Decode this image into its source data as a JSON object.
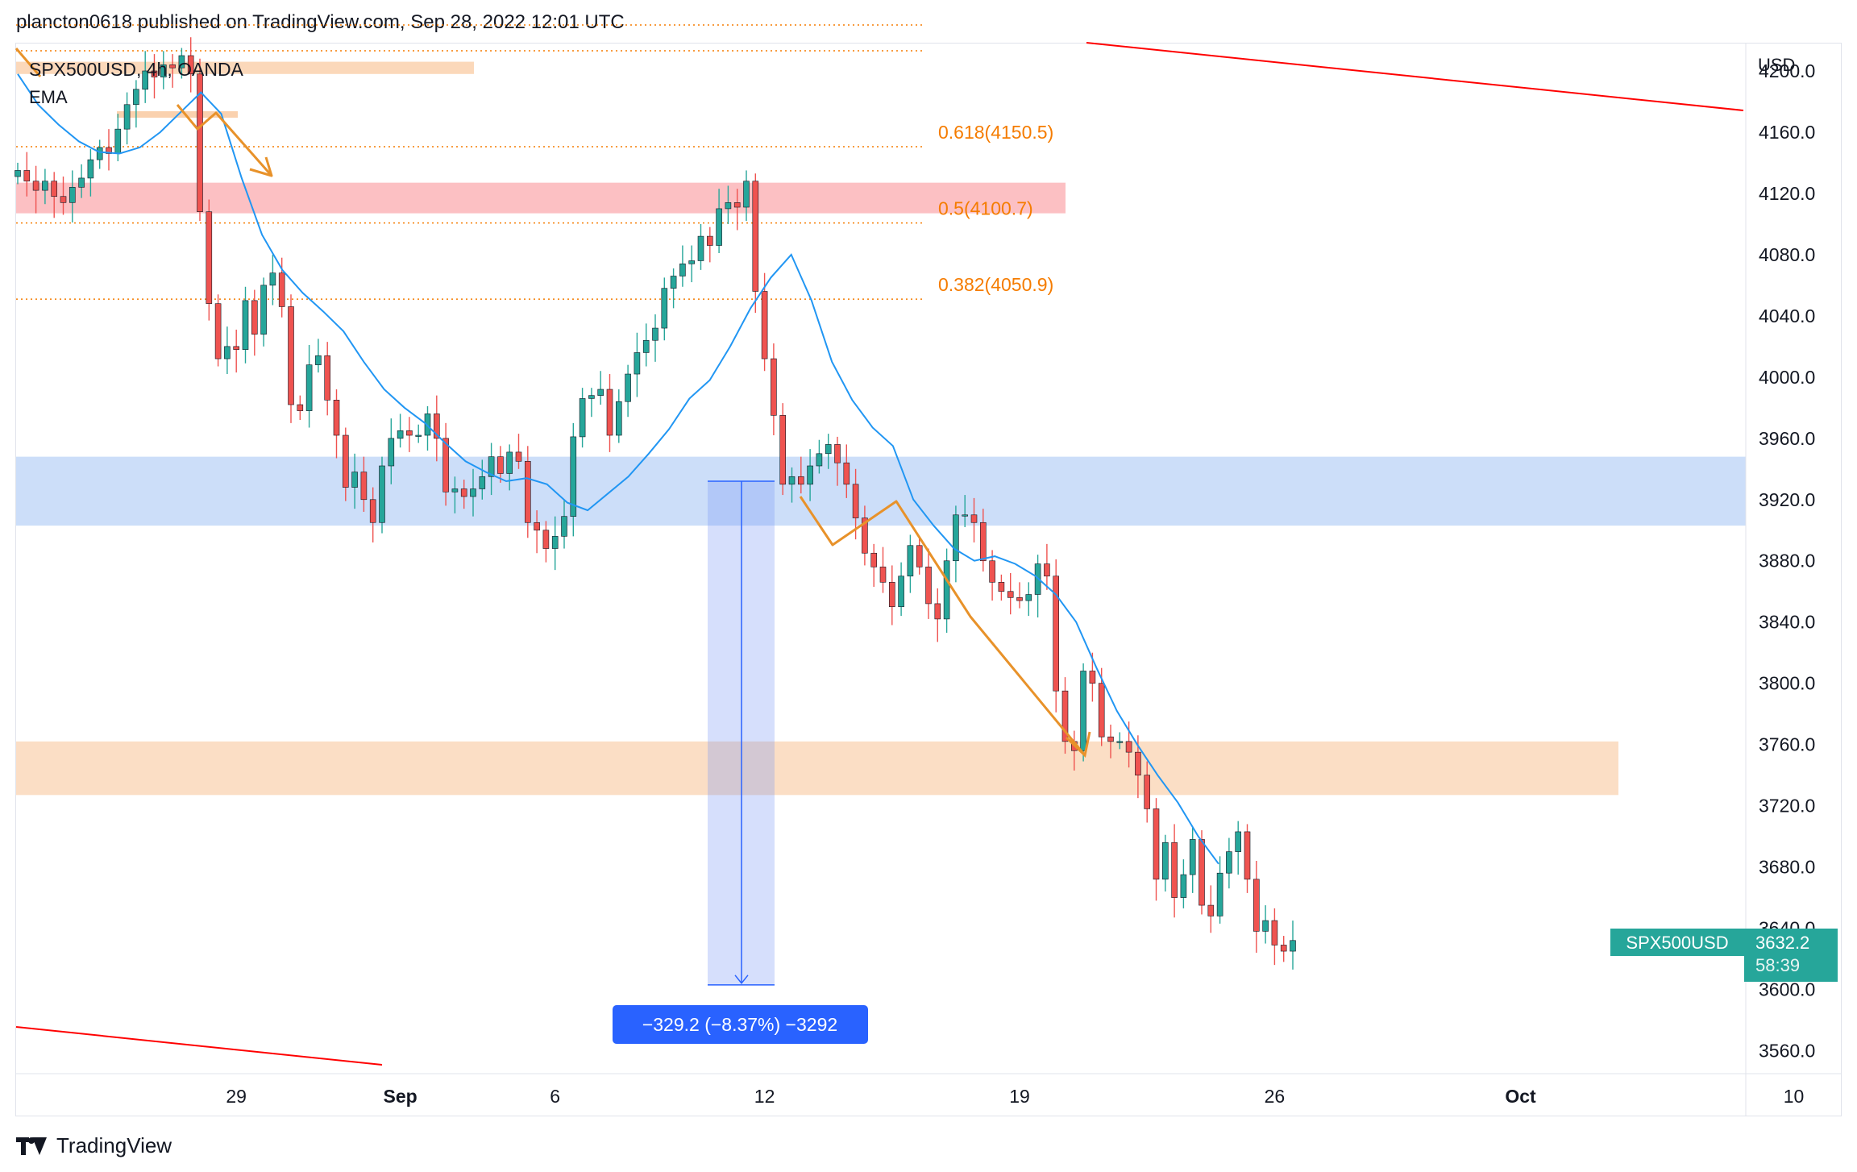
{
  "header": {
    "text": "plancton0618 published on TradingView.com, Sep 28, 2022 12:01 UTC"
  },
  "legend": {
    "symbol": "SPX500USD, 4h, OANDA",
    "indicator": "EMA"
  },
  "axis": {
    "currency": "USD"
  },
  "price_tag": {
    "symbol": "SPX500USD",
    "price": "3632.2",
    "countdown": "58:39"
  },
  "measure": {
    "label": "−329.2 (−8.37%) −3292"
  },
  "fib": [
    {
      "label": "0.618(4150.5)",
      "value": 4150.5
    },
    {
      "label": "0.5(4100.7)",
      "value": 4100.7
    },
    {
      "label": "0.382(4050.9)",
      "value": 4050.9
    }
  ],
  "footer": {
    "brand": "TradingView"
  },
  "colors": {
    "up": "#26a69a",
    "down": "#ef5350",
    "ema": "#2196f3",
    "fib": "#f57c00",
    "trend": "#ff0000",
    "arrow": "#e8922a",
    "measure": "#2962ff",
    "tag": "#26a69a"
  },
  "chart_data": {
    "type": "candlestick",
    "title": "SPX500USD, 4h, OANDA",
    "ylabel": "USD",
    "ylim": [
      3545,
      4220
    ],
    "y_ticks": [
      3560.0,
      3600.0,
      3640.0,
      3680.0,
      3720.0,
      3760.0,
      3800.0,
      3840.0,
      3880.0,
      3920.0,
      3960.0,
      4000.0,
      4040.0,
      4080.0,
      4120.0,
      4160.0,
      4200.0
    ],
    "y_tick_labels": [
      "3560.0",
      "3600.0",
      "3640.0",
      "3680.0",
      "3720.0",
      "3760.0",
      "3800.0",
      "3840.0",
      "3880.0",
      "3920.0",
      "3960.0",
      "4000.0",
      "4040.0",
      "4080.0",
      "4120.0",
      "4160.0",
      "4200.0"
    ],
    "x_ticks": [
      {
        "label": "29",
        "bar": 24,
        "bold": false
      },
      {
        "label": "Sep",
        "bar": 42,
        "bold": true
      },
      {
        "label": "6",
        "bar": 59,
        "bold": false
      },
      {
        "label": "12",
        "bar": 82,
        "bold": false
      },
      {
        "label": "19",
        "bar": 110,
        "bold": false
      },
      {
        "label": "26",
        "bar": 138,
        "bold": false
      },
      {
        "label": "Oct",
        "bar": 165,
        "bold": true
      },
      {
        "label": "10",
        "bar": 195,
        "bold": false
      }
    ],
    "closes": [
      4135,
      4128,
      4122,
      4128,
      4118,
      4114,
      4124,
      4130,
      4142,
      4150,
      4146,
      4162,
      4178,
      4188,
      4200,
      4196,
      4204,
      4202,
      4210,
      4198,
      4108,
      4048,
      4012,
      4020,
      4018,
      4050,
      4028,
      4060,
      4068,
      4046,
      3982,
      3978,
      4008,
      4014,
      3985,
      3962,
      3928,
      3938,
      3920,
      3905,
      3942,
      3960,
      3965,
      3962,
      3962,
      3976,
      3960,
      3925,
      3927,
      3922,
      3927,
      3935,
      3948,
      3937,
      3951,
      3945,
      3905,
      3900,
      3888,
      3896,
      3909,
      3961,
      3986,
      3988,
      3992,
      3962,
      3984,
      4002,
      4016,
      4024,
      4032,
      4058,
      4066,
      4074,
      4076,
      4092,
      4086,
      4110,
      4114,
      4111,
      4128,
      4056,
      4012,
      3975,
      3930,
      3935,
      3930,
      3942,
      3950,
      3956,
      3944,
      3930,
      3908,
      3885,
      3876,
      3866,
      3850,
      3870,
      3890,
      3876,
      3852,
      3842,
      3880,
      3910,
      3910,
      3905,
      3880,
      3866,
      3860,
      3856,
      3854,
      3858,
      3878,
      3870,
      3795,
      3762,
      3756,
      3808,
      3800,
      3765,
      3762,
      3762,
      3755,
      3740,
      3718,
      3672,
      3696,
      3660,
      3675,
      3698,
      3655,
      3648,
      3676,
      3690,
      3703,
      3672,
      3638,
      3645,
      3629,
      3625,
      3632
    ],
    "series": [
      {
        "name": "EMA",
        "values": [
          4198,
          4178,
          4165,
          4154,
          4147,
          4146,
          4150,
          4160,
          4173,
          4186,
          4172,
          4130,
          4093,
          4070,
          4055,
          4043,
          4030,
          4010,
          3992,
          3980,
          3970,
          3957,
          3945,
          3938,
          3932,
          3934,
          3930,
          3918,
          3913,
          3924,
          3935,
          3950,
          3966,
          3986,
          3998,
          4020,
          4045,
          4065,
          4080,
          4050,
          4010,
          3985,
          3967,
          3955,
          3920,
          3903,
          3888,
          3880,
          3883,
          3878,
          3870,
          3858,
          3840,
          3810,
          3782,
          3760,
          3740,
          3722,
          3700,
          3682
        ]
      },
      {
        "name": "Fibonacci levels",
        "values": [
          4150.5,
          4100.7,
          4050.9
        ]
      },
      {
        "name": "Measure",
        "values": [
          3932,
          3603
        ]
      }
    ],
    "zones": [
      {
        "name": "resistance",
        "from": 4107,
        "to": 4127
      },
      {
        "name": "support-blue",
        "from": 3903,
        "to": 3948
      },
      {
        "name": "support-orange",
        "from": 3727,
        "to": 3762
      },
      {
        "name": "top-zone",
        "from": 4198,
        "to": 4206
      }
    ],
    "legend": [
      "SPX500USD, 4h, OANDA",
      "EMA"
    ]
  }
}
